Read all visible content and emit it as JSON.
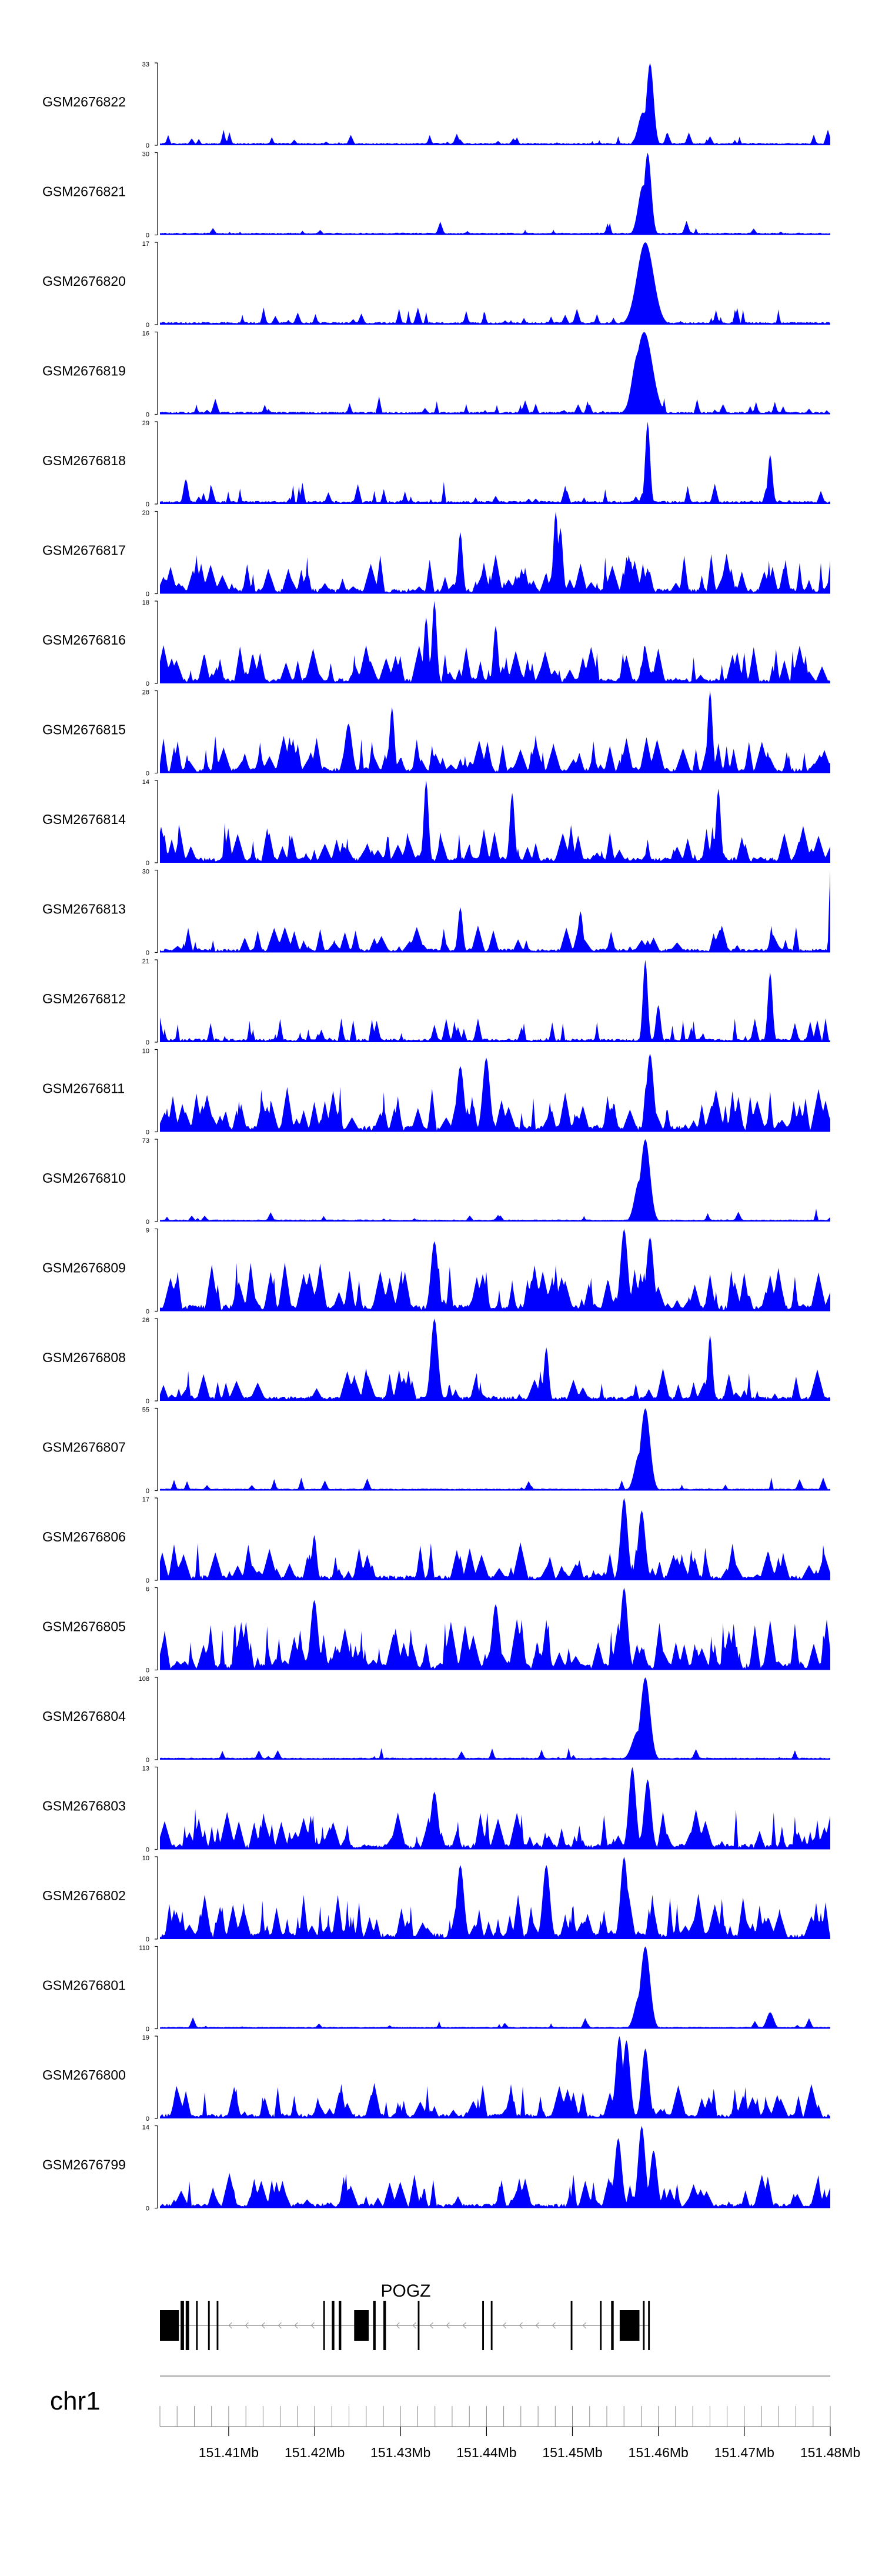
{
  "colors": {
    "signal": "#0000ff",
    "axis": "#000000",
    "gene": "#000000",
    "intron": "#9a9a9a",
    "ruler": "#888888"
  },
  "chart_data": {
    "type": "area",
    "title": "",
    "xlabel": "",
    "ylabel": "",
    "xlim": [
      151402000,
      151480000
    ],
    "chromosome": "chr1",
    "x_ticks": [
      151410000,
      151420000,
      151430000,
      151440000,
      151450000,
      151460000,
      151470000,
      151480000
    ],
    "x_tick_labels": [
      "151.41Mb",
      "151.42Mb",
      "151.43Mb",
      "151.44Mb",
      "151.45Mb",
      "151.46Mb",
      "151.47Mb",
      "151.48Mb"
    ],
    "genes": [
      {
        "name": "POGZ",
        "strand": "-",
        "start": 151402000,
        "end": 151459000,
        "exons": [
          [
            151402000,
            151404200
          ],
          [
            151404400,
            151404800
          ],
          [
            151405000,
            151405400
          ],
          [
            151406200,
            151406400
          ],
          [
            151407600,
            151407800
          ],
          [
            151408600,
            151408800
          ],
          [
            151421000,
            151421200
          ],
          [
            151422000,
            151422300
          ],
          [
            151422800,
            151423100
          ],
          [
            151424600,
            151426300
          ],
          [
            151426800,
            151427100
          ],
          [
            151428000,
            151428300
          ],
          [
            151432000,
            151432200
          ],
          [
            151439500,
            151439700
          ],
          [
            151440500,
            151440700
          ],
          [
            151449800,
            151450000
          ],
          [
            151453200,
            151453400
          ],
          [
            151454500,
            151454800
          ],
          [
            151455500,
            151457800
          ],
          [
            151458200,
            151458400
          ],
          [
            151458800,
            151459000
          ]
        ]
      }
    ],
    "series": [
      {
        "name": "GSM2676822",
        "ymax": "33",
        "seed": 22,
        "density": 0.7,
        "peaks": [
          [
            151459000,
            1.0,
            400
          ],
          [
            151458200,
            0.4,
            500
          ]
        ]
      },
      {
        "name": "GSM2676821",
        "ymax": "30",
        "seed": 21,
        "density": 0.6,
        "peaks": [
          [
            151458800,
            1.0,
            400
          ],
          [
            151458200,
            0.6,
            500
          ]
        ]
      },
      {
        "name": "GSM2676820",
        "ymax": "17",
        "seed": 20,
        "density": 0.9,
        "peaks": [
          [
            151458500,
            1.0,
            900
          ],
          [
            151457800,
            0.55,
            700
          ]
        ]
      },
      {
        "name": "GSM2676819",
        "ymax": "16",
        "seed": 19,
        "density": 0.9,
        "peaks": [
          [
            151458300,
            1.0,
            900
          ],
          [
            151457700,
            0.75,
            700
          ]
        ]
      },
      {
        "name": "GSM2676818",
        "ymax": "29",
        "seed": 18,
        "density": 1.2,
        "peaks": [
          [
            151458800,
            1.0,
            300
          ],
          [
            151473000,
            0.6,
            300
          ],
          [
            151405000,
            0.3,
            300
          ]
        ]
      },
      {
        "name": "GSM2676817",
        "ymax": "20",
        "seed": 17,
        "density": 2.6,
        "peaks": [
          [
            151448000,
            1.0,
            300
          ],
          [
            151448600,
            0.8,
            300
          ],
          [
            151437000,
            0.75,
            300
          ]
        ]
      },
      {
        "name": "GSM2676816",
        "ymax": "18",
        "seed": 16,
        "density": 2.4,
        "peaks": [
          [
            151434000,
            1.0,
            300
          ],
          [
            151433000,
            0.8,
            300
          ],
          [
            151441000,
            0.7,
            300
          ]
        ]
      },
      {
        "name": "GSM2676815",
        "ymax": "28",
        "seed": 15,
        "density": 2.4,
        "peaks": [
          [
            151466000,
            1.0,
            300
          ],
          [
            151429000,
            0.8,
            300
          ],
          [
            151424000,
            0.6,
            400
          ]
        ]
      },
      {
        "name": "GSM2676814",
        "ymax": "14",
        "seed": 14,
        "density": 2.6,
        "peaks": [
          [
            151433000,
            1.0,
            300
          ],
          [
            151467000,
            0.9,
            300
          ],
          [
            151443000,
            0.85,
            300
          ]
        ]
      },
      {
        "name": "GSM2676813",
        "ymax": "30",
        "seed": 13,
        "density": 1.6,
        "peaks": [
          [
            151480000,
            1.0,
            200
          ],
          [
            151437000,
            0.55,
            300
          ],
          [
            151451000,
            0.5,
            300
          ]
        ]
      },
      {
        "name": "GSM2676812",
        "ymax": "21",
        "seed": 12,
        "density": 1.4,
        "peaks": [
          [
            151458500,
            1.0,
            300
          ],
          [
            151473000,
            0.85,
            300
          ],
          [
            151460000,
            0.45,
            300
          ]
        ]
      },
      {
        "name": "GSM2676811",
        "ymax": "10",
        "seed": 11,
        "density": 3.0,
        "peaks": [
          [
            151459000,
            0.95,
            400
          ],
          [
            151440000,
            0.9,
            400
          ],
          [
            151437000,
            0.8,
            400
          ]
        ]
      },
      {
        "name": "GSM2676810",
        "ymax": "73",
        "seed": 10,
        "density": 0.5,
        "peaks": [
          [
            151458500,
            1.0,
            500
          ],
          [
            151457800,
            0.5,
            600
          ]
        ]
      },
      {
        "name": "GSM2676809",
        "ymax": "9",
        "seed": 9,
        "density": 3.2,
        "peaks": [
          [
            151456000,
            1.0,
            400
          ],
          [
            151459000,
            0.9,
            400
          ],
          [
            151434000,
            0.85,
            400
          ]
        ]
      },
      {
        "name": "GSM2676808",
        "ymax": "26",
        "seed": 8,
        "density": 2.0,
        "peaks": [
          [
            151434000,
            1.0,
            400
          ],
          [
            151466000,
            0.8,
            300
          ],
          [
            151447000,
            0.65,
            300
          ]
        ]
      },
      {
        "name": "GSM2676807",
        "ymax": "55",
        "seed": 7,
        "density": 0.5,
        "peaks": [
          [
            151458500,
            1.0,
            500
          ],
          [
            151457800,
            0.45,
            600
          ]
        ]
      },
      {
        "name": "GSM2676806",
        "ymax": "17",
        "seed": 6,
        "density": 2.4,
        "peaks": [
          [
            151456000,
            1.0,
            400
          ],
          [
            151458000,
            0.85,
            400
          ],
          [
            151420000,
            0.55,
            300
          ]
        ]
      },
      {
        "name": "GSM2676805",
        "ymax": "6",
        "seed": 5,
        "density": 3.4,
        "peaks": [
          [
            151456000,
            1.0,
            400
          ],
          [
            151420000,
            0.85,
            400
          ],
          [
            151441000,
            0.8,
            400
          ]
        ]
      },
      {
        "name": "GSM2676804",
        "ymax": "108",
        "seed": 4,
        "density": 0.5,
        "peaks": [
          [
            151458500,
            1.0,
            500
          ],
          [
            151457600,
            0.35,
            700
          ]
        ]
      },
      {
        "name": "GSM2676803",
        "ymax": "13",
        "seed": 3,
        "density": 2.6,
        "peaks": [
          [
            151457000,
            1.0,
            400
          ],
          [
            151458800,
            0.85,
            400
          ],
          [
            151434000,
            0.7,
            400
          ]
        ]
      },
      {
        "name": "GSM2676802",
        "ymax": "10",
        "seed": 2,
        "density": 3.0,
        "peaks": [
          [
            151456000,
            1.0,
            400
          ],
          [
            151437000,
            0.9,
            400
          ],
          [
            151447000,
            0.9,
            400
          ]
        ]
      },
      {
        "name": "GSM2676801",
        "ymax": "110",
        "seed": 1,
        "density": 0.4,
        "peaks": [
          [
            151458500,
            1.0,
            500
          ],
          [
            151457800,
            0.4,
            600
          ],
          [
            151473000,
            0.2,
            400
          ]
        ]
      },
      {
        "name": "GSM2676800",
        "ymax": "19",
        "seed": 40,
        "density": 2.2,
        "peaks": [
          [
            151455500,
            1.0,
            400
          ],
          [
            151456300,
            0.95,
            400
          ],
          [
            151458500,
            0.85,
            400
          ]
        ]
      },
      {
        "name": "GSM2676799",
        "ymax": "14",
        "seed": 41,
        "density": 2.2,
        "peaks": [
          [
            151458000,
            1.0,
            400
          ],
          [
            151455300,
            0.85,
            400
          ],
          [
            151459500,
            0.7,
            400
          ]
        ]
      }
    ]
  }
}
